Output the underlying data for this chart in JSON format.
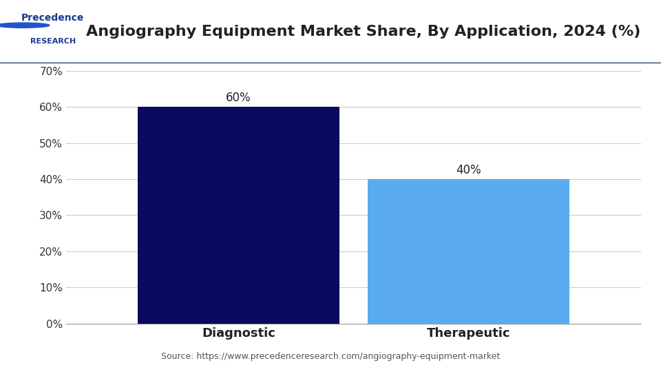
{
  "title": "Angiography Equipment Market Share, By Application, 2024 (%)",
  "categories": [
    "Diagnostic",
    "Therapeutic"
  ],
  "values": [
    60,
    40
  ],
  "bar_colors": [
    "#0a0a5e",
    "#5aabf0"
  ],
  "bar_labels": [
    "60%",
    "40%"
  ],
  "ylim": [
    0,
    70
  ],
  "yticks": [
    0,
    10,
    20,
    30,
    40,
    50,
    60,
    70
  ],
  "ytick_labels": [
    "0%",
    "10%",
    "20%",
    "30%",
    "40%",
    "50%",
    "60%",
    "70%"
  ],
  "source_text": "Source: https://www.precedenceresearch.com/angiography-equipment-market",
  "background_color": "#ffffff",
  "title_fontsize": 16,
  "label_fontsize": 12,
  "tick_fontsize": 11,
  "source_fontsize": 9,
  "bar_width": 0.35,
  "header_color": "#ffffff",
  "header_line_color": "#1a3a6b",
  "grid_color": "#cccccc"
}
